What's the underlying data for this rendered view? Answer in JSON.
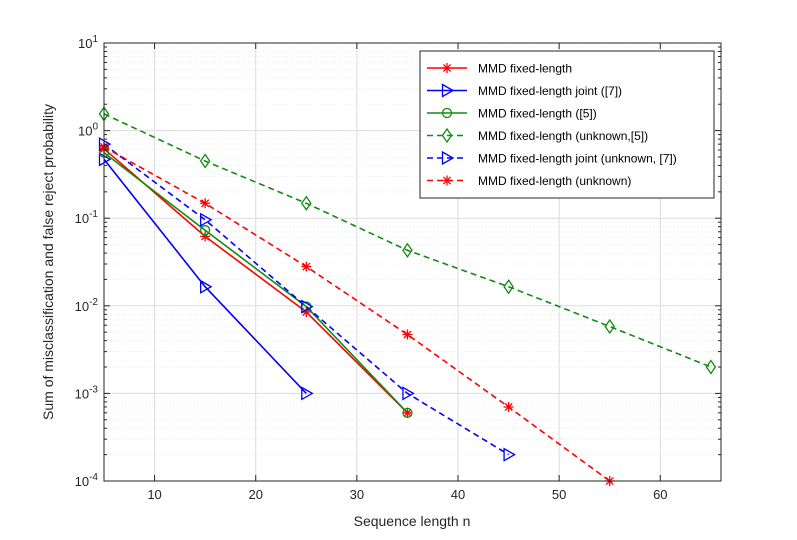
{
  "chart_data": {
    "type": "line",
    "title": "",
    "xlabel": "Sequence length n",
    "ylabel": "Sum of misclassification and false reject probability",
    "xlim": [
      5,
      66
    ],
    "ylim": [
      0.0001,
      10
    ],
    "yscale": "log",
    "grid": true,
    "legend_position": "top-right",
    "x_ticks": [
      "10",
      "20",
      "30",
      "40",
      "50",
      "60"
    ],
    "y_ticks": [
      {
        "base": "10",
        "exp": "1"
      },
      {
        "base": "10",
        "exp": "0"
      },
      {
        "base": "10",
        "exp": "-1"
      },
      {
        "base": "10",
        "exp": "-2"
      },
      {
        "base": "10",
        "exp": "-3"
      },
      {
        "base": "10",
        "exp": "-4"
      }
    ],
    "series": [
      {
        "name": "MMD fixed-length",
        "color": "#ff0000",
        "dash": "solid",
        "marker": "asterisk",
        "x": [
          5,
          15,
          25,
          35
        ],
        "y": [
          0.62,
          0.062,
          0.0085,
          0.0006
        ]
      },
      {
        "name": "MMD fixed-length joint ([7])",
        "color": "#0000ff",
        "dash": "solid",
        "marker": "triangle-right",
        "x": [
          5,
          15,
          25
        ],
        "y": [
          0.47,
          0.0165,
          0.001
        ]
      },
      {
        "name": "MMD fixed-length ([5])",
        "color": "#118c11",
        "dash": "solid",
        "marker": "circle",
        "x": [
          5,
          15,
          25,
          35
        ],
        "y": [
          0.56,
          0.073,
          0.0098,
          0.0006
        ]
      },
      {
        "name": "MMD fixed-length (unknown,[5])",
        "color": "#118c11",
        "dash": "dashed",
        "marker": "diamond",
        "x": [
          5,
          15,
          25,
          35,
          45,
          55,
          65
        ],
        "y": [
          1.55,
          0.45,
          0.148,
          0.043,
          0.0165,
          0.0058,
          0.002
        ]
      },
      {
        "name": "MMD fixed-length joint (unknown, [7])",
        "color": "#0000ff",
        "dash": "dashed",
        "marker": "triangle-right",
        "x": [
          5,
          15,
          25,
          35,
          45
        ],
        "y": [
          0.7,
          0.096,
          0.0098,
          0.001,
          0.0002
        ]
      },
      {
        "name": "MMD fixed-length (unknown)",
        "color": "#ff0000",
        "dash": "dashed",
        "marker": "asterisk",
        "x": [
          5,
          15,
          25,
          35,
          45,
          55
        ],
        "y": [
          0.65,
          0.148,
          0.028,
          0.0047,
          0.0007,
          0.0001
        ]
      }
    ]
  }
}
